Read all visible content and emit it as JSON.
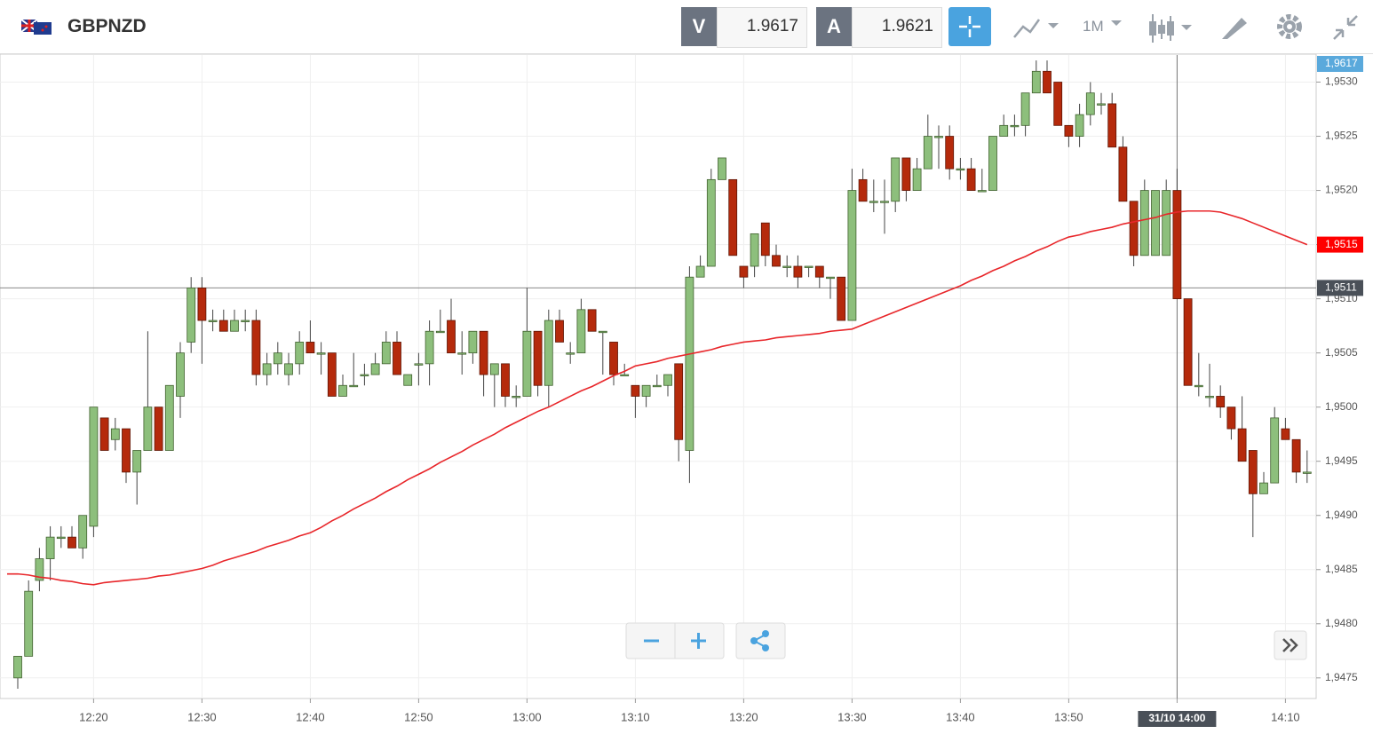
{
  "header": {
    "symbol": "GBPNZD",
    "bid_label": "V",
    "bid": "1.9617",
    "ask_label": "A",
    "ask": "1.9621",
    "timeframe": "1M"
  },
  "chart_data": {
    "type": "candlestick",
    "categories": [
      null,
      null,
      null,
      null,
      null,
      null,
      null,
      "12:20",
      null,
      null,
      null,
      null,
      null,
      null,
      null,
      null,
      null,
      "12:30",
      null,
      null,
      null,
      null,
      null,
      null,
      null,
      null,
      null,
      "12:40",
      null,
      null,
      null,
      null,
      null,
      null,
      null,
      null,
      null,
      "12:50",
      null,
      null,
      null,
      null,
      null,
      null,
      null,
      null,
      null,
      "13:00",
      null,
      null,
      null,
      null,
      null,
      null,
      null,
      null,
      null,
      "13:10",
      null,
      null,
      null,
      null,
      null,
      null,
      null,
      null,
      null,
      "13:20",
      null,
      null,
      null,
      null,
      null,
      null,
      null,
      null,
      null,
      "13:30",
      null,
      null,
      null,
      null,
      null,
      null,
      null,
      null,
      null,
      "13:40",
      null,
      null,
      null,
      null,
      null,
      null,
      null,
      null,
      null,
      "13:50",
      null,
      null,
      null,
      null,
      null,
      null,
      null,
      null,
      null,
      "14:00",
      null,
      null,
      null,
      null,
      null,
      null,
      null,
      null,
      null,
      "14:10",
      null,
      null
    ],
    "open": [
      1.9475,
      1.9477,
      1.9484,
      1.9486,
      1.9488,
      1.9488,
      1.9487,
      1.9489,
      1.9499,
      1.9497,
      1.9498,
      1.9494,
      1.9496,
      1.95,
      1.9496,
      1.9501,
      1.9506,
      1.9511,
      1.9508,
      1.9508,
      1.9507,
      1.9508,
      1.9508,
      1.9503,
      1.9504,
      1.9503,
      1.9504,
      1.9506,
      1.9505,
      1.9505,
      1.9501,
      1.9502,
      1.9503,
      1.9503,
      1.9504,
      1.9506,
      1.9502,
      1.9504,
      1.9504,
      1.9507,
      1.9508,
      1.9505,
      1.9505,
      1.9507,
      1.9503,
      1.9504,
      1.9501,
      1.9501,
      1.9507,
      1.9502,
      1.9508,
      1.9505,
      1.9505,
      1.9509,
      1.9507,
      1.9506,
      1.9503,
      1.9502,
      1.9501,
      1.9502,
      1.9502,
      1.9504,
      1.9496,
      1.9512,
      1.9513,
      1.9521,
      1.9521,
      1.9513,
      1.9513,
      1.9517,
      1.9514,
      1.9513,
      1.9513,
      1.9513,
      1.9513,
      1.9512,
      1.9512,
      1.9508,
      1.9521,
      1.9519,
      1.9519,
      1.9519,
      1.9523,
      1.952,
      1.9522,
      1.9525,
      1.9525,
      1.9522,
      1.9522,
      1.952,
      1.952,
      1.9525,
      1.9526,
      1.9526,
      1.9529,
      1.9531,
      1.953,
      1.9526,
      1.9525,
      1.9527,
      1.9528,
      1.9528,
      1.9524,
      1.9519,
      1.9514,
      1.9514,
      1.9514,
      1.952,
      1.951,
      1.9502,
      1.9501,
      1.9501,
      1.95,
      1.9498,
      1.9496,
      1.9492,
      1.9493,
      1.9498,
      1.9497,
      1.9494
    ],
    "high": [
      1.9477,
      1.9484,
      1.9487,
      1.9489,
      1.9489,
      1.9489,
      1.949,
      1.95,
      1.9499,
      1.9499,
      1.9498,
      1.9496,
      1.9507,
      1.95,
      1.9502,
      1.9506,
      1.9512,
      1.9512,
      1.9509,
      1.9509,
      1.9509,
      1.9509,
      1.9509,
      1.9505,
      1.9506,
      1.9505,
      1.9507,
      1.9508,
      1.9506,
      1.9505,
      1.9503,
      1.9505,
      1.9504,
      1.9505,
      1.9507,
      1.9507,
      1.9503,
      1.9505,
      1.9508,
      1.9509,
      1.951,
      1.9507,
      1.9507,
      1.9507,
      1.9504,
      1.9504,
      1.9502,
      1.9511,
      1.9507,
      1.9509,
      1.9509,
      1.9506,
      1.951,
      1.9509,
      1.9507,
      1.9506,
      1.9504,
      1.9502,
      1.9502,
      1.9503,
      1.9503,
      1.9504,
      1.9513,
      1.9514,
      1.9522,
      1.9523,
      1.9521,
      1.9513,
      1.9516,
      1.9517,
      1.9515,
      1.9514,
      1.9514,
      1.9513,
      1.9513,
      1.9512,
      1.9512,
      1.9522,
      1.9522,
      1.9521,
      1.9521,
      1.9523,
      1.9523,
      1.9523,
      1.9527,
      1.9526,
      1.9526,
      1.9523,
      1.9523,
      1.9522,
      1.9525,
      1.9527,
      1.9527,
      1.9529,
      1.9532,
      1.9532,
      1.953,
      1.9526,
      1.9528,
      1.953,
      1.9529,
      1.9529,
      1.9525,
      1.9519,
      1.9521,
      1.952,
      1.9521,
      1.9522,
      1.951,
      1.9505,
      1.9504,
      1.9502,
      1.95,
      1.9501,
      1.9496,
      1.9494,
      1.95,
      1.9499,
      1.9497,
      1.9496
    ],
    "low": [
      1.9474,
      1.9477,
      1.9483,
      1.9484,
      1.9487,
      1.9487,
      1.9486,
      1.9488,
      1.9496,
      1.9496,
      1.9493,
      1.9491,
      1.9496,
      1.9496,
      1.9496,
      1.9499,
      1.9505,
      1.9504,
      1.9507,
      1.9507,
      1.9507,
      1.9507,
      1.9502,
      1.9502,
      1.9503,
      1.9502,
      1.9503,
      1.9505,
      1.9503,
      1.9501,
      1.9501,
      1.9502,
      1.9502,
      1.9503,
      1.9504,
      1.9503,
      1.9502,
      1.9502,
      1.9502,
      1.9507,
      1.9505,
      1.9503,
      1.9504,
      1.9501,
      1.95,
      1.95,
      1.95,
      1.9501,
      1.9501,
      1.95,
      1.9506,
      1.9504,
      1.9505,
      1.9507,
      1.9503,
      1.9502,
      1.9503,
      1.9499,
      1.95,
      1.9502,
      1.9501,
      1.9495,
      1.9493,
      1.9512,
      1.9513,
      1.9521,
      1.9514,
      1.9511,
      1.9512,
      1.9513,
      1.9513,
      1.9512,
      1.9511,
      1.9512,
      1.9511,
      1.951,
      1.9508,
      1.9508,
      1.9519,
      1.9518,
      1.9516,
      1.9518,
      1.9519,
      1.952,
      1.9522,
      1.9522,
      1.9521,
      1.9521,
      1.952,
      1.952,
      1.952,
      1.9525,
      1.9525,
      1.9525,
      1.9529,
      1.9529,
      1.9526,
      1.9524,
      1.9524,
      1.9526,
      1.9527,
      1.9524,
      1.9519,
      1.9513,
      1.9514,
      1.9514,
      1.9514,
      1.951,
      1.9502,
      1.9501,
      1.95,
      1.9499,
      1.9497,
      1.9495,
      1.9488,
      1.9492,
      1.9493,
      1.9497,
      1.9493,
      1.9493
    ],
    "close": [
      1.9477,
      1.9483,
      1.9486,
      1.9488,
      1.9488,
      1.9487,
      1.949,
      1.95,
      1.9496,
      1.9498,
      1.9494,
      1.9496,
      1.95,
      1.9496,
      1.9502,
      1.9505,
      1.9511,
      1.9508,
      1.9508,
      1.9507,
      1.9508,
      1.9508,
      1.9503,
      1.9504,
      1.9505,
      1.9504,
      1.9506,
      1.9505,
      1.9505,
      1.9501,
      1.9502,
      1.9502,
      1.9503,
      1.9504,
      1.9506,
      1.9503,
      1.9503,
      1.9504,
      1.9507,
      1.9507,
      1.9505,
      1.9505,
      1.9507,
      1.9503,
      1.9504,
      1.9501,
      1.9501,
      1.9507,
      1.9502,
      1.9508,
      1.9506,
      1.9505,
      1.9509,
      1.9507,
      1.9507,
      1.9503,
      1.9503,
      1.9501,
      1.9502,
      1.9502,
      1.9503,
      1.9497,
      1.9512,
      1.9513,
      1.9521,
      1.9523,
      1.9514,
      1.9512,
      1.9516,
      1.9514,
      1.9513,
      1.9513,
      1.9512,
      1.9513,
      1.9512,
      1.9512,
      1.9508,
      1.952,
      1.9519,
      1.9519,
      1.9519,
      1.9523,
      1.952,
      1.9522,
      1.9525,
      1.9525,
      1.9522,
      1.9522,
      1.952,
      1.952,
      1.9525,
      1.9526,
      1.9526,
      1.9529,
      1.9531,
      1.9529,
      1.9526,
      1.9525,
      1.9527,
      1.9529,
      1.9528,
      1.9524,
      1.9519,
      1.9514,
      1.952,
      1.952,
      1.952,
      1.951,
      1.9502,
      1.9502,
      1.9501,
      1.95,
      1.9498,
      1.9495,
      1.9492,
      1.9493,
      1.9499,
      1.9497,
      1.9494,
      1.9494
    ],
    "up_color": "#8dbf7c",
    "down_color": "#b52a0c",
    "ma": {
      "color": "#e8262a",
      "values": [
        1.94846,
        1.94845,
        1.94843,
        1.94842,
        1.9484,
        1.94839,
        1.94837,
        1.94836,
        1.94838,
        1.94839,
        1.9484,
        1.94841,
        1.94842,
        1.94844,
        1.94845,
        1.94847,
        1.94849,
        1.94851,
        1.94854,
        1.94858,
        1.94861,
        1.94864,
        1.94867,
        1.94871,
        1.94874,
        1.94877,
        1.94881,
        1.94884,
        1.94889,
        1.94895,
        1.949,
        1.94906,
        1.94911,
        1.94916,
        1.94922,
        1.94927,
        1.94933,
        1.94938,
        1.94943,
        1.94949,
        1.94954,
        1.94959,
        1.94965,
        1.9497,
        1.94975,
        1.94981,
        1.94986,
        1.94991,
        1.94996,
        1.95,
        1.95005,
        1.9501,
        1.95015,
        1.95019,
        1.95024,
        1.95029,
        1.95033,
        1.95038,
        1.9504,
        1.95042,
        1.95045,
        1.95047,
        1.95049,
        1.95051,
        1.95053,
        1.95056,
        1.95058,
        1.9506,
        1.95061,
        1.95062,
        1.95064,
        1.95065,
        1.95066,
        1.95067,
        1.95068,
        1.9507,
        1.95071,
        1.95072,
        1.95076,
        1.9508,
        1.95084,
        1.95088,
        1.95092,
        1.95096,
        1.951,
        1.95104,
        1.95108,
        1.95112,
        1.95117,
        1.95121,
        1.95126,
        1.9513,
        1.95135,
        1.95139,
        1.95144,
        1.95148,
        1.95153,
        1.95157,
        1.95159,
        1.95162,
        1.95164,
        1.95166,
        1.95169,
        1.95171,
        1.95173,
        1.95175,
        1.95178,
        1.9518,
        1.95181,
        1.95181,
        1.95181,
        1.9518,
        1.95177,
        1.95174,
        1.9517,
        1.95166,
        1.95162,
        1.95158,
        1.95154,
        1.9515
      ]
    },
    "ylim": [
      1.94731,
      1.95325
    ],
    "yticks": [
      {
        "value": 1.9475,
        "label": "1,9475"
      },
      {
        "value": 1.948,
        "label": "1,9480"
      },
      {
        "value": 1.9485,
        "label": "1,9485"
      },
      {
        "value": 1.949,
        "label": "1,9490"
      },
      {
        "value": 1.9495,
        "label": "1,9495"
      },
      {
        "value": 1.95,
        "label": "1,9500"
      },
      {
        "value": 1.9505,
        "label": "1,9505"
      },
      {
        "value": 1.951,
        "label": "1,9510"
      },
      {
        "value": 1.9515,
        "label": "1,9515"
      },
      {
        "value": 1.952,
        "label": "1,9520"
      },
      {
        "value": 1.9525,
        "label": "1,9525"
      },
      {
        "value": 1.953,
        "label": "1,9530"
      }
    ],
    "grid": true,
    "price_marker": {
      "value": 1.9617,
      "label": "1,9617",
      "color": "#5aa9dc"
    },
    "ma_marker": {
      "value": 1.9515,
      "label": "1,9515",
      "color": "#ff0000"
    },
    "crosshair": {
      "value": 1.9511,
      "label": "1,9511",
      "index": 107,
      "time_label": "31/10 14:00"
    }
  }
}
